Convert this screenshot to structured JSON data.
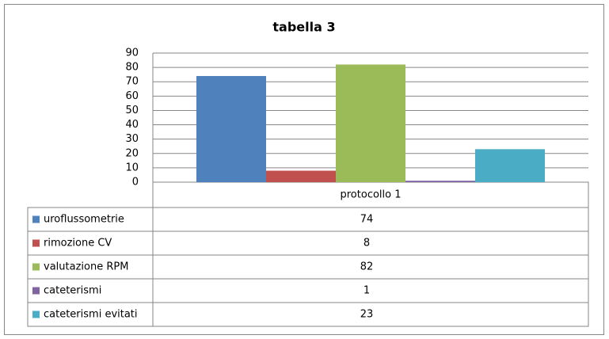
{
  "chart_data": {
    "type": "bar",
    "title": "tabella 3",
    "categories": [
      "protocollo 1"
    ],
    "series": [
      {
        "name": "uroflussometrie",
        "color": "#4f81bd",
        "values": [
          74
        ]
      },
      {
        "name": "rimozione CV",
        "color": "#c0504d",
        "values": [
          8
        ]
      },
      {
        "name": "valutazione RPM",
        "color": "#9bbb59",
        "values": [
          82
        ]
      },
      {
        "name": "cateterismi",
        "color": "#8064a2",
        "values": [
          1
        ]
      },
      {
        "name": "cateterismi evitati",
        "color": "#4bacc6",
        "values": [
          23
        ]
      }
    ],
    "ylim": [
      0,
      90
    ],
    "yticks": [
      0,
      10,
      20,
      30,
      40,
      50,
      60,
      70,
      80,
      90
    ],
    "grid": true
  }
}
